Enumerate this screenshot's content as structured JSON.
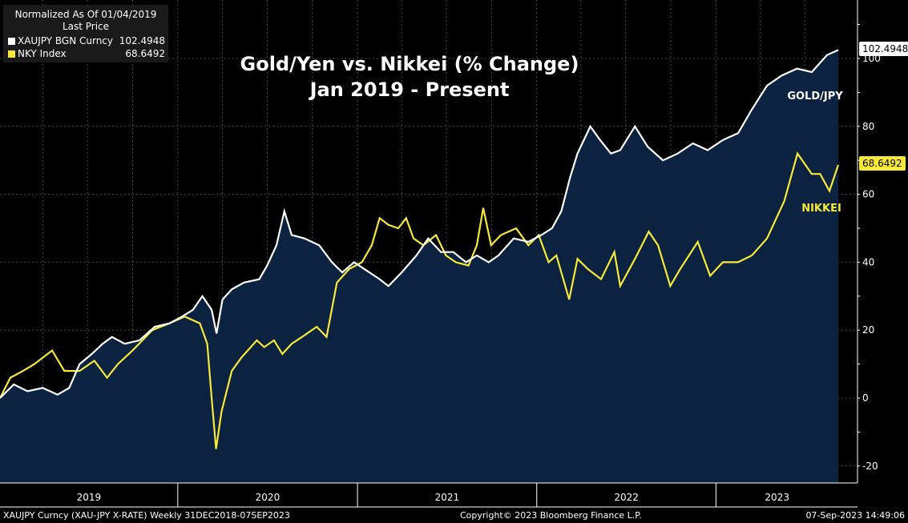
{
  "chart_data": {
    "type": "line",
    "title": "Gold/Yen vs. Nikkei (% Change)",
    "subtitle": "Jan 2019 - Present",
    "ylim": [
      -25,
      115
    ],
    "yticks": [
      -20,
      0,
      20,
      40,
      60,
      80,
      100
    ],
    "x_years": [
      "2019",
      "2020",
      "2021",
      "2022",
      "2023"
    ],
    "x_start": "2019-01-04",
    "x_end": "2023-09-07",
    "series": [
      {
        "name": "XAUJPY BGN Curncy",
        "label": "GOLD/JPY",
        "color": "#ffffff",
        "last": "102.4948",
        "points": [
          [
            "2019-01-04",
            0
          ],
          [
            "2019-02-01",
            4
          ],
          [
            "2019-03-01",
            2
          ],
          [
            "2019-04-01",
            3
          ],
          [
            "2019-05-01",
            1
          ],
          [
            "2019-05-25",
            3
          ],
          [
            "2019-06-15",
            10
          ],
          [
            "2019-07-10",
            13
          ],
          [
            "2019-08-01",
            16
          ],
          [
            "2019-08-20",
            18
          ],
          [
            "2019-09-15",
            16
          ],
          [
            "2019-10-15",
            17
          ],
          [
            "2019-11-15",
            21
          ],
          [
            "2019-12-15",
            22
          ],
          [
            "2020-01-10",
            24
          ],
          [
            "2020-02-01",
            26
          ],
          [
            "2020-02-20",
            30
          ],
          [
            "2020-03-10",
            26
          ],
          [
            "2020-03-20",
            19
          ],
          [
            "2020-04-01",
            29
          ],
          [
            "2020-04-20",
            32
          ],
          [
            "2020-05-15",
            34
          ],
          [
            "2020-06-15",
            35
          ],
          [
            "2020-07-01",
            39
          ],
          [
            "2020-07-20",
            45
          ],
          [
            "2020-08-05",
            55
          ],
          [
            "2020-08-20",
            48
          ],
          [
            "2020-09-15",
            47
          ],
          [
            "2020-10-15",
            45
          ],
          [
            "2020-11-10",
            40
          ],
          [
            "2020-12-01",
            37
          ],
          [
            "2020-12-25",
            40
          ],
          [
            "2021-01-15",
            38
          ],
          [
            "2021-02-15",
            35
          ],
          [
            "2021-03-05",
            33
          ],
          [
            "2021-04-01",
            37
          ],
          [
            "2021-05-01",
            42
          ],
          [
            "2021-05-25",
            47
          ],
          [
            "2021-06-20",
            43
          ],
          [
            "2021-07-15",
            43
          ],
          [
            "2021-08-10",
            40
          ],
          [
            "2021-09-01",
            42
          ],
          [
            "2021-09-25",
            40
          ],
          [
            "2021-10-15",
            42
          ],
          [
            "2021-11-15",
            47
          ],
          [
            "2021-12-15",
            46
          ],
          [
            "2022-01-10",
            48
          ],
          [
            "2022-02-01",
            50
          ],
          [
            "2022-02-20",
            55
          ],
          [
            "2022-03-10",
            65
          ],
          [
            "2022-03-25",
            72
          ],
          [
            "2022-04-20",
            80
          ],
          [
            "2022-05-10",
            76
          ],
          [
            "2022-06-01",
            72
          ],
          [
            "2022-06-20",
            73
          ],
          [
            "2022-07-20",
            80
          ],
          [
            "2022-08-15",
            74
          ],
          [
            "2022-09-15",
            70
          ],
          [
            "2022-10-15",
            72
          ],
          [
            "2022-11-15",
            75
          ],
          [
            "2022-12-15",
            73
          ],
          [
            "2023-01-15",
            76
          ],
          [
            "2023-02-15",
            78
          ],
          [
            "2023-03-15",
            85
          ],
          [
            "2023-04-15",
            92
          ],
          [
            "2023-05-15",
            95
          ],
          [
            "2023-06-15",
            97
          ],
          [
            "2023-07-15",
            96
          ],
          [
            "2023-08-15",
            101
          ],
          [
            "2023-09-07",
            102.4948
          ]
        ]
      },
      {
        "name": "NKY Index",
        "label": "NIKKEI",
        "color": "#f6e93a",
        "last": "68.6492",
        "points": [
          [
            "2019-01-04",
            0
          ],
          [
            "2019-01-25",
            6
          ],
          [
            "2019-02-20",
            8
          ],
          [
            "2019-03-15",
            10
          ],
          [
            "2019-04-20",
            14
          ],
          [
            "2019-05-15",
            8
          ],
          [
            "2019-06-15",
            8
          ],
          [
            "2019-07-15",
            11
          ],
          [
            "2019-08-10",
            6
          ],
          [
            "2019-09-01",
            10
          ],
          [
            "2019-10-01",
            14
          ],
          [
            "2019-11-10",
            20
          ],
          [
            "2019-12-15",
            22
          ],
          [
            "2020-01-15",
            24
          ],
          [
            "2020-02-15",
            22
          ],
          [
            "2020-03-01",
            16
          ],
          [
            "2020-03-10",
            0
          ],
          [
            "2020-03-19",
            -15
          ],
          [
            "2020-03-30",
            -4
          ],
          [
            "2020-04-20",
            8
          ],
          [
            "2020-05-10",
            12
          ],
          [
            "2020-06-10",
            17
          ],
          [
            "2020-06-25",
            15
          ],
          [
            "2020-07-15",
            17
          ],
          [
            "2020-08-01",
            13
          ],
          [
            "2020-08-20",
            16
          ],
          [
            "2020-09-10",
            18
          ],
          [
            "2020-10-10",
            21
          ],
          [
            "2020-10-30",
            18
          ],
          [
            "2020-11-20",
            34
          ],
          [
            "2020-12-15",
            38
          ],
          [
            "2021-01-10",
            40
          ],
          [
            "2021-01-30",
            45
          ],
          [
            "2021-02-15",
            53
          ],
          [
            "2021-03-05",
            51
          ],
          [
            "2021-03-25",
            50
          ],
          [
            "2021-04-10",
            53
          ],
          [
            "2021-04-25",
            47
          ],
          [
            "2021-05-15",
            45
          ],
          [
            "2021-06-10",
            48
          ],
          [
            "2021-06-30",
            42
          ],
          [
            "2021-07-20",
            40
          ],
          [
            "2021-08-15",
            39
          ],
          [
            "2021-09-01",
            45
          ],
          [
            "2021-09-14",
            56
          ],
          [
            "2021-09-30",
            45
          ],
          [
            "2021-10-20",
            48
          ],
          [
            "2021-11-20",
            50
          ],
          [
            "2021-12-15",
            45
          ],
          [
            "2022-01-05",
            48
          ],
          [
            "2022-01-25",
            40
          ],
          [
            "2022-02-10",
            42
          ],
          [
            "2022-03-08",
            29
          ],
          [
            "2022-03-25",
            41
          ],
          [
            "2022-04-15",
            38
          ],
          [
            "2022-05-12",
            35
          ],
          [
            "2022-06-08",
            43
          ],
          [
            "2022-06-20",
            33
          ],
          [
            "2022-07-20",
            41
          ],
          [
            "2022-08-17",
            49
          ],
          [
            "2022-09-05",
            45
          ],
          [
            "2022-09-30",
            33
          ],
          [
            "2022-10-20",
            38
          ],
          [
            "2022-11-25",
            46
          ],
          [
            "2022-12-20",
            36
          ],
          [
            "2023-01-15",
            40
          ],
          [
            "2023-02-15",
            40
          ],
          [
            "2023-03-15",
            42
          ],
          [
            "2023-04-15",
            47
          ],
          [
            "2023-05-20",
            58
          ],
          [
            "2023-06-16",
            72
          ],
          [
            "2023-07-15",
            66
          ],
          [
            "2023-08-01",
            66
          ],
          [
            "2023-08-20",
            61
          ],
          [
            "2023-09-07",
            68.6492
          ]
        ]
      }
    ]
  },
  "legend": {
    "header_line1": "Normalized As Of 01/04/2019",
    "header_line2": "Last Price",
    "rows": [
      {
        "name": "XAUJPY BGN Curncy",
        "value": "102.4948",
        "color": "#ffffff"
      },
      {
        "name": "NKY Index",
        "value": "68.6492",
        "color": "#f6e93a"
      }
    ]
  },
  "footer": {
    "left": "XAUJPY Curncy (XAU-JPY X-RATE)  Weekly 31DEC2018-07SEP2023",
    "center": "Copyright© 2023 Bloomberg Finance L.P.",
    "right": "07-Sep-2023 14:49:06"
  },
  "colors": {
    "background": "#000000",
    "area_fill": "#0b2240",
    "grid": "#444444",
    "gold_line": "#ffffff",
    "nikkei_line": "#f6e93a"
  }
}
